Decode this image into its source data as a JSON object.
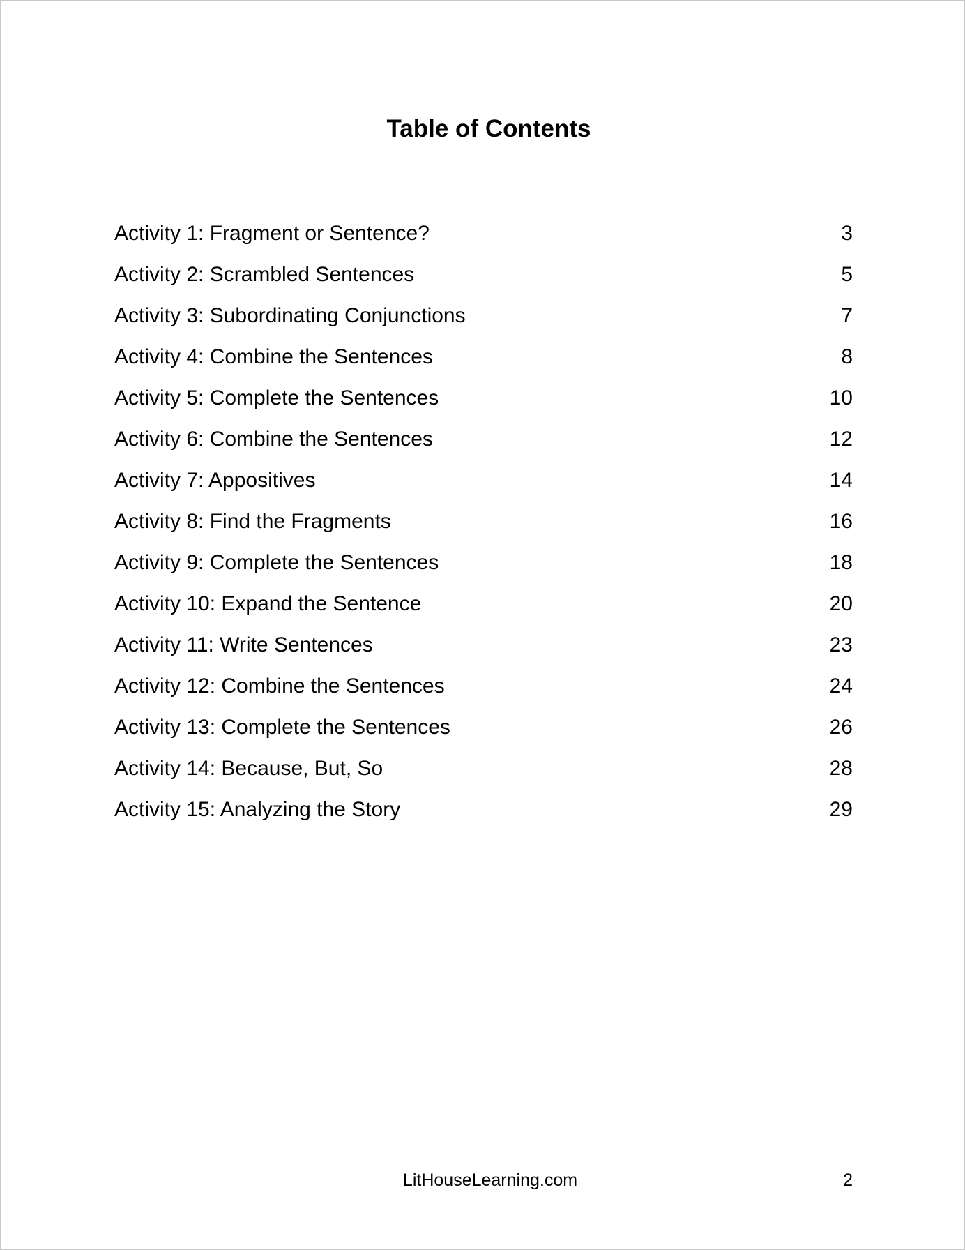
{
  "title": "Table of Contents",
  "entries": [
    {
      "label": "Activity 1: Fragment or Sentence?",
      "page": "3"
    },
    {
      "label": "Activity 2: Scrambled Sentences",
      "page": "5"
    },
    {
      "label": "Activity 3: Subordinating Conjunctions",
      "page": "7"
    },
    {
      "label": "Activity 4: Combine the Sentences",
      "page": "8"
    },
    {
      "label": "Activity 5: Complete the Sentences",
      "page": "10"
    },
    {
      "label": "Activity 6: Combine the Sentences",
      "page": "12"
    },
    {
      "label": "Activity 7: Appositives",
      "page": "14"
    },
    {
      "label": "Activity 8: Find the Fragments",
      "page": "16"
    },
    {
      "label": "Activity 9: Complete the Sentences",
      "page": "18"
    },
    {
      "label": "Activity 10: Expand the Sentence",
      "page": "20"
    },
    {
      "label": "Activity 11: Write Sentences",
      "page": "23"
    },
    {
      "label": "Activity 12: Combine the Sentences",
      "page": "24"
    },
    {
      "label": "Activity 13: Complete the Sentences",
      "page": "26"
    },
    {
      "label": "Activity 14: Because, But, So",
      "page": "28"
    },
    {
      "label": "Activity 15: Analyzing the Story",
      "page": "29"
    }
  ],
  "footer": {
    "site": "LitHouseLearning.com",
    "page_number": "2"
  }
}
